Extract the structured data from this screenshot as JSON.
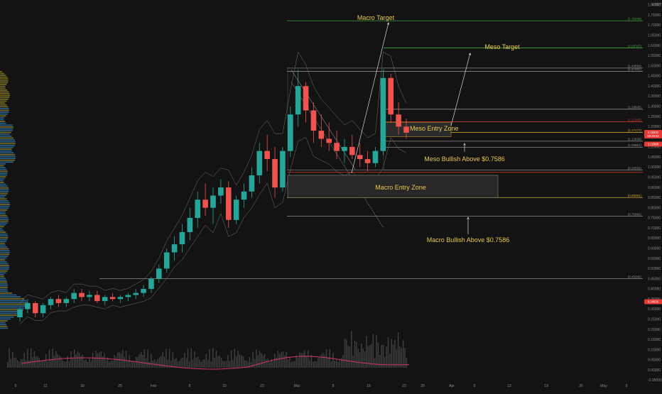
{
  "chart_data": {
    "type": "candlestick",
    "currency": "USDT",
    "y_axis_ticks": [
      "1.80000",
      "1.75000",
      "1.70000",
      "1.65000",
      "1.60000",
      "1.55000",
      "1.50000",
      "1.45000",
      "1.40000",
      "1.35000",
      "1.30000",
      "1.25000",
      "1.20000",
      "1.15000",
      "1.10000",
      "1.05000",
      "1.00000",
      "0.95000",
      "0.90000",
      "0.85000",
      "0.80000",
      "0.75000",
      "0.70000",
      "0.65000",
      "0.60000",
      "0.55000",
      "0.50000",
      "0.45000",
      "0.40000",
      "0.35000",
      "0.30000",
      "0.25000",
      "0.20000",
      "0.15000",
      "0.10000",
      "0.05000",
      "0.00000",
      "-0.05000"
    ],
    "ylim": [
      -0.05,
      1.8
    ],
    "x_axis_ticks": [
      "5",
      "11",
      "18",
      "25",
      "Feb",
      "8",
      "15",
      "22",
      "Mar",
      "8",
      "15",
      "22",
      "29",
      "Apr",
      "5",
      "12",
      "19",
      "26",
      "May",
      "5"
    ],
    "levels": [
      {
        "label": "(1.72208)",
        "value": 1.72208,
        "color": "#3fa33f"
      },
      {
        "label": "(1.58787)",
        "value": 1.58787,
        "color": "#3fa33f"
      },
      {
        "label": "(1.48868)",
        "value": 1.48868,
        "color": "#8a8a8a"
      },
      {
        "label": "(1.47287)",
        "value": 1.47287,
        "color": "#8a8a8a"
      },
      {
        "label": "(1.28605)",
        "value": 1.28605,
        "color": "#8a8a8a"
      },
      {
        "label": "(1.22385)",
        "value": 1.22385,
        "color": "#c0392b"
      },
      {
        "label": "(1.17177)",
        "value": 1.17177,
        "color": "#c9a227"
      },
      {
        "label": "(1.12836)",
        "value": 1.12836,
        "color": "#8a8a8a"
      },
      {
        "label": "(1.09851)",
        "value": 1.09851,
        "color": "#8a8a8a"
      },
      {
        "label": "(0.98559)",
        "value": 0.98559,
        "color": "#8a8a8a"
      },
      {
        "label": "(0.85051)",
        "value": 0.85051,
        "color": "#c9a227"
      },
      {
        "label": "(0.75860)",
        "value": 0.7586,
        "color": "#8a8a8a"
      },
      {
        "label": "(0.45006)",
        "value": 0.45006,
        "color": "#8a8a8a"
      }
    ],
    "price_badges": [
      {
        "lines": [
          "1.15622",
          "02:19:42"
        ],
        "color": "#e53935"
      },
      {
        "lines": [
          "1.12996"
        ],
        "color": "#e53935"
      },
      {
        "lines": [
          "0.34636"
        ],
        "color": "#e53935"
      }
    ],
    "annotations": [
      {
        "text": "Macro Target",
        "size": 9
      },
      {
        "text": "Meso Target",
        "size": 7
      },
      {
        "text": "Meso Entry Zone",
        "size": 7
      },
      {
        "text": "Meso Bullish Above $0.7586",
        "size": 7
      },
      {
        "text": "Macro Entry Zone",
        "size": 10
      },
      {
        "text": "Macro Bullish Above $0.7586",
        "size": 9.5
      }
    ],
    "candles_ohlc_approx": [
      [
        0.26,
        0.31,
        0.24,
        0.3
      ],
      [
        0.3,
        0.35,
        0.28,
        0.33
      ],
      [
        0.33,
        0.34,
        0.26,
        0.28
      ],
      [
        0.28,
        0.33,
        0.26,
        0.32
      ],
      [
        0.32,
        0.36,
        0.3,
        0.35
      ],
      [
        0.35,
        0.37,
        0.31,
        0.33
      ],
      [
        0.33,
        0.36,
        0.31,
        0.35
      ],
      [
        0.35,
        0.4,
        0.33,
        0.38
      ],
      [
        0.38,
        0.4,
        0.34,
        0.36
      ],
      [
        0.36,
        0.39,
        0.34,
        0.37
      ],
      [
        0.37,
        0.39,
        0.33,
        0.34
      ],
      [
        0.34,
        0.37,
        0.32,
        0.36
      ],
      [
        0.36,
        0.38,
        0.34,
        0.35
      ],
      [
        0.35,
        0.37,
        0.33,
        0.36
      ],
      [
        0.36,
        0.38,
        0.34,
        0.37
      ],
      [
        0.37,
        0.4,
        0.35,
        0.38
      ],
      [
        0.38,
        0.42,
        0.36,
        0.4
      ],
      [
        0.4,
        0.46,
        0.38,
        0.45
      ],
      [
        0.45,
        0.52,
        0.43,
        0.5
      ],
      [
        0.5,
        0.6,
        0.48,
        0.58
      ],
      [
        0.58,
        0.66,
        0.54,
        0.62
      ],
      [
        0.62,
        0.72,
        0.58,
        0.68
      ],
      [
        0.68,
        0.8,
        0.64,
        0.75
      ],
      [
        0.75,
        0.88,
        0.7,
        0.84
      ],
      [
        0.84,
        0.92,
        0.76,
        0.8
      ],
      [
        0.8,
        0.9,
        0.72,
        0.86
      ],
      [
        0.86,
        0.94,
        0.82,
        0.9
      ],
      [
        0.9,
        0.93,
        0.7,
        0.74
      ],
      [
        0.74,
        0.86,
        0.72,
        0.84
      ],
      [
        0.84,
        0.92,
        0.8,
        0.88
      ],
      [
        0.88,
        1.0,
        0.85,
        0.96
      ],
      [
        0.96,
        1.12,
        0.92,
        1.08
      ],
      [
        1.08,
        1.16,
        0.98,
        1.04
      ],
      [
        1.04,
        1.1,
        0.85,
        0.9
      ],
      [
        0.9,
        1.1,
        0.88,
        1.08
      ],
      [
        1.08,
        1.3,
        1.05,
        1.26
      ],
      [
        1.26,
        1.48,
        1.2,
        1.4
      ],
      [
        1.4,
        1.42,
        1.22,
        1.28
      ],
      [
        1.28,
        1.32,
        1.12,
        1.18
      ],
      [
        1.18,
        1.26,
        1.1,
        1.14
      ],
      [
        1.14,
        1.22,
        1.08,
        1.12
      ],
      [
        1.12,
        1.18,
        1.04,
        1.08
      ],
      [
        1.08,
        1.14,
        1.02,
        1.1
      ],
      [
        1.1,
        1.16,
        1.04,
        1.06
      ],
      [
        1.06,
        1.12,
        1.0,
        1.04
      ],
      [
        1.04,
        1.08,
        0.98,
        1.02
      ],
      [
        1.02,
        1.1,
        1.0,
        1.08
      ],
      [
        1.08,
        1.48,
        1.06,
        1.44
      ],
      [
        1.44,
        1.46,
        1.22,
        1.26
      ],
      [
        1.26,
        1.32,
        1.16,
        1.2
      ],
      [
        1.2,
        1.24,
        1.14,
        1.17
      ]
    ],
    "legend": "none",
    "grid": false
  }
}
